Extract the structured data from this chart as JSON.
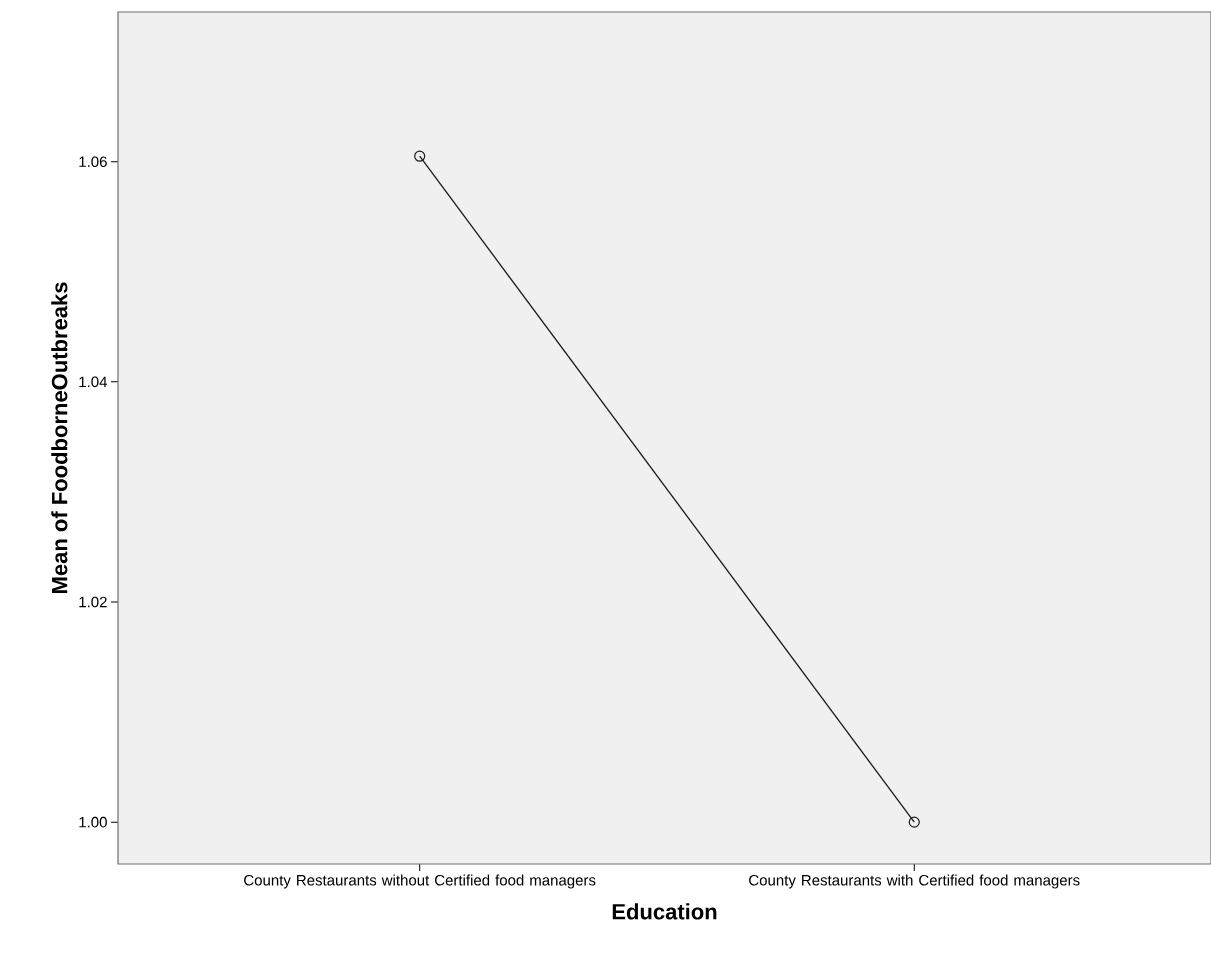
{
  "chart_data": {
    "type": "line",
    "categories": [
      "County Restaurants without Certified food managers",
      "County Restaurants with Certified food managers"
    ],
    "series": [
      {
        "color": "#1a1a1a",
        "values": [
          1.0605,
          1.0
        ]
      }
    ],
    "xlabel": "Education",
    "ylabel": "Mean of FoodborneOutbreaks",
    "ylim": [
      0.9962,
      1.0736
    ],
    "yticks": [
      {
        "value": 1.0,
        "label": "1.00"
      },
      {
        "value": 1.02,
        "label": "1.02"
      },
      {
        "value": 1.04,
        "label": "1.04"
      },
      {
        "value": 1.06,
        "label": "1.06"
      }
    ],
    "marker": "circle"
  }
}
